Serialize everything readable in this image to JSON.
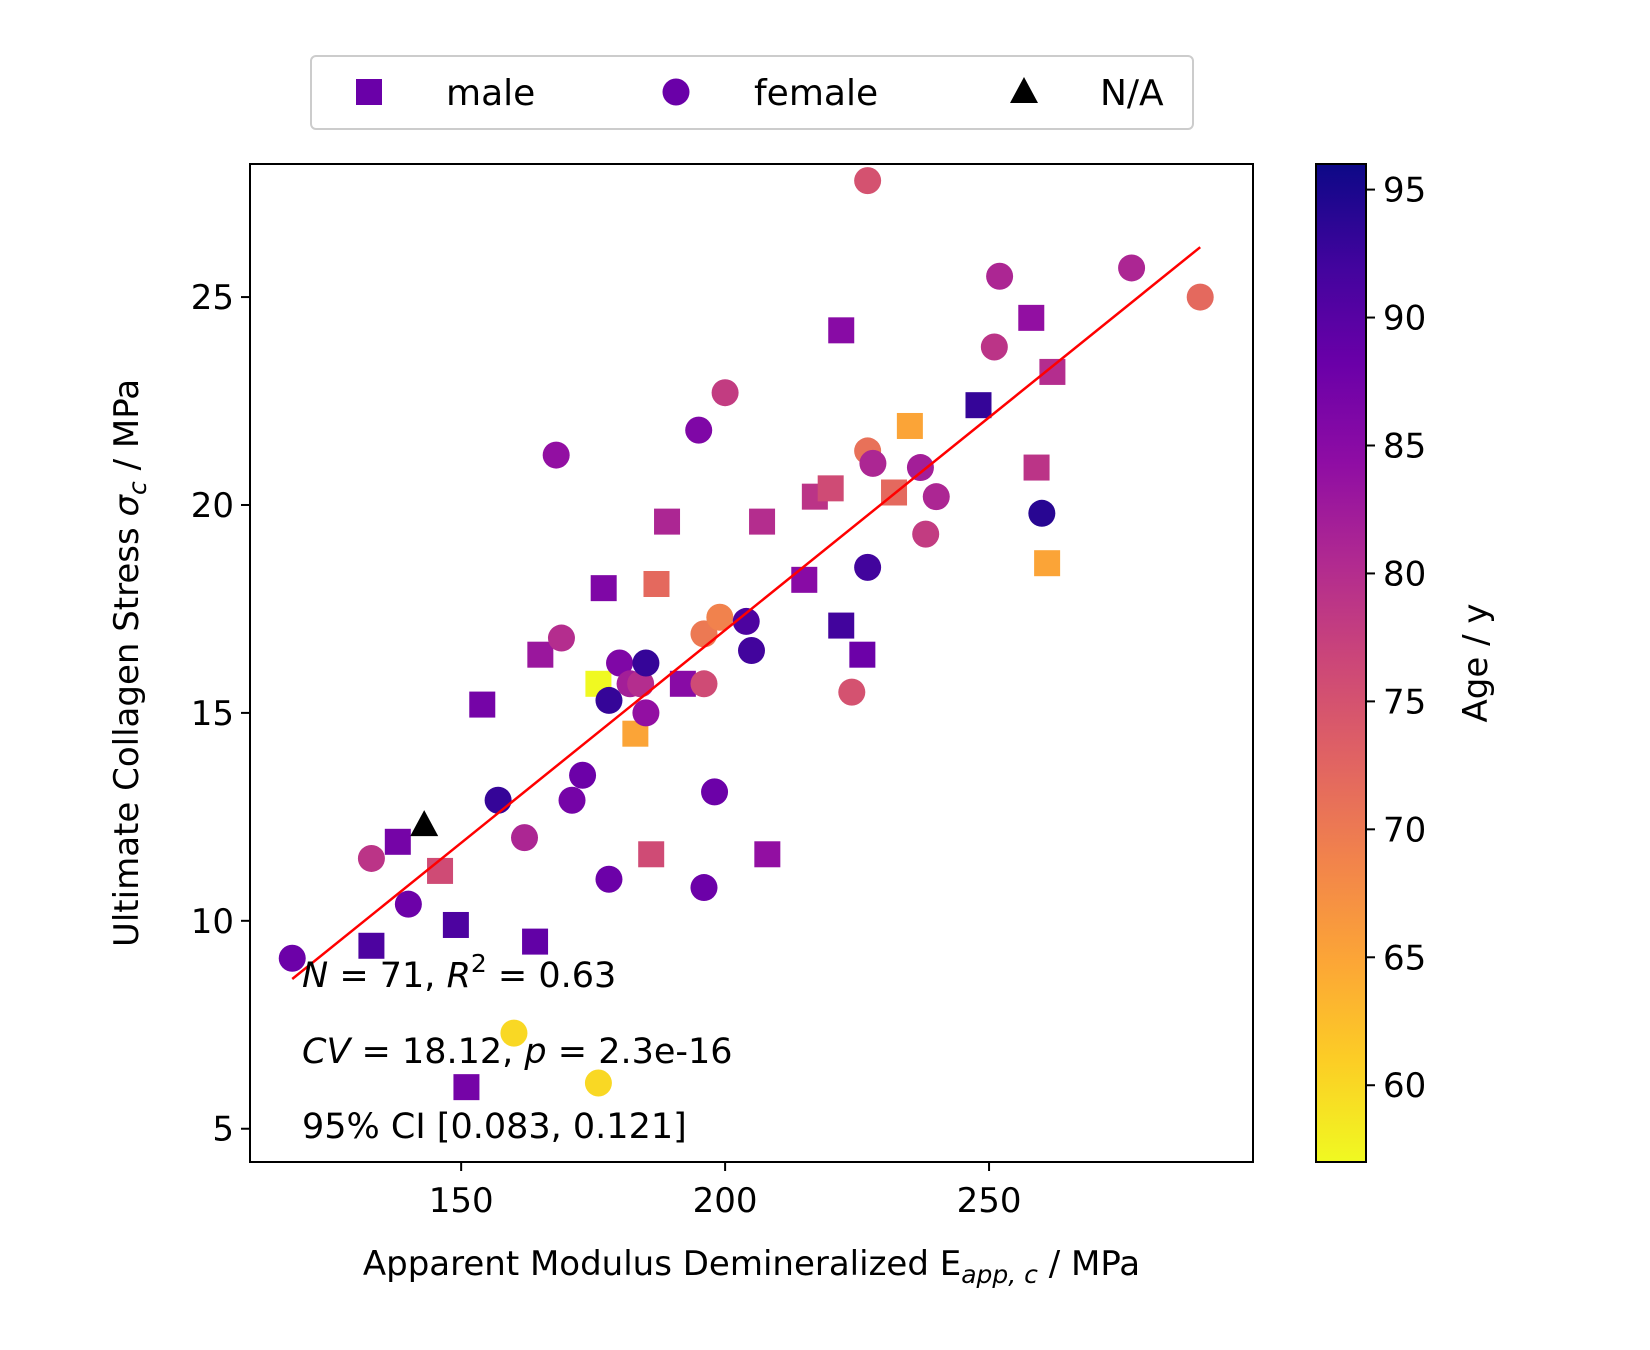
{
  "chart_data": {
    "type": "scatter",
    "title": "",
    "xlabel": {
      "main": "Apparent Modulus Demineralized E",
      "sub": "app, c",
      "unit": " / MPa"
    },
    "ylabel": {
      "main": "Ultimate Collagen Stress ",
      "sym": "σ",
      "sub": "c",
      "unit": " / MPa"
    },
    "xlim": [
      110,
      300
    ],
    "ylim": [
      4.2,
      28.2
    ],
    "xticks": [
      150,
      200,
      250
    ],
    "yticks": [
      5,
      10,
      15,
      20,
      25
    ],
    "grid": false,
    "legend": {
      "placement": "top-center",
      "entries": [
        {
          "marker": "square",
          "label": "male",
          "color": "#6a00a8"
        },
        {
          "marker": "circle",
          "label": "female",
          "color": "#6a00a8"
        },
        {
          "marker": "triangle",
          "label": "N/A",
          "color": "#000000"
        }
      ]
    },
    "colorbar": {
      "label": "Age / y",
      "colormap": "plasma",
      "range": [
        57,
        96
      ],
      "ticks": [
        60,
        65,
        70,
        75,
        80,
        85,
        90,
        95
      ]
    },
    "regression": {
      "color": "#ff0000",
      "x": [
        118,
        290
      ],
      "y": [
        8.6,
        26.2
      ]
    },
    "annotations": [
      {
        "parts": [
          {
            "t": "N",
            "i": true
          },
          {
            "t": " = 71, "
          },
          {
            "t": "R",
            "i": true
          },
          {
            "t": "2",
            "sup": true
          },
          {
            "t": " = 0.63"
          }
        ]
      },
      {
        "parts": [
          {
            "t": "CV",
            "i": true
          },
          {
            "t": " = 18.12, "
          },
          {
            "t": "p",
            "i": true
          },
          {
            "t": " = 2.3e-16"
          }
        ]
      },
      {
        "parts": [
          {
            "t": "95% CI [0.083,  0.121]"
          }
        ]
      }
    ],
    "series": [
      {
        "name": "male",
        "marker": "square",
        "points": [
          {
            "x": 133,
            "y": 9.4,
            "age": 91
          },
          {
            "x": 138,
            "y": 11.9,
            "age": 87
          },
          {
            "x": 146,
            "y": 11.2,
            "age": 76
          },
          {
            "x": 149,
            "y": 9.9,
            "age": 91
          },
          {
            "x": 151,
            "y": 6.0,
            "age": 87
          },
          {
            "x": 154,
            "y": 15.2,
            "age": 87
          },
          {
            "x": 164,
            "y": 9.5,
            "age": 89
          },
          {
            "x": 165,
            "y": 16.4,
            "age": 83
          },
          {
            "x": 177,
            "y": 18.0,
            "age": 86
          },
          {
            "x": 176,
            "y": 15.7,
            "age": 57
          },
          {
            "x": 183,
            "y": 14.5,
            "age": 65
          },
          {
            "x": 186,
            "y": 11.6,
            "age": 76
          },
          {
            "x": 187,
            "y": 18.1,
            "age": 72
          },
          {
            "x": 189,
            "y": 19.6,
            "age": 81
          },
          {
            "x": 192,
            "y": 15.7,
            "age": 85
          },
          {
            "x": 207,
            "y": 19.6,
            "age": 80
          },
          {
            "x": 208,
            "y": 11.6,
            "age": 84
          },
          {
            "x": 215,
            "y": 18.2,
            "age": 85
          },
          {
            "x": 217,
            "y": 20.2,
            "age": 79
          },
          {
            "x": 220,
            "y": 20.4,
            "age": 76
          },
          {
            "x": 222,
            "y": 24.2,
            "age": 85
          },
          {
            "x": 222,
            "y": 17.1,
            "age": 92
          },
          {
            "x": 226,
            "y": 16.4,
            "age": 88
          },
          {
            "x": 232,
            "y": 20.3,
            "age": 72
          },
          {
            "x": 235,
            "y": 21.9,
            "age": 65
          },
          {
            "x": 248,
            "y": 22.4,
            "age": 93
          },
          {
            "x": 258,
            "y": 24.5,
            "age": 84
          },
          {
            "x": 259,
            "y": 20.9,
            "age": 79
          },
          {
            "x": 261,
            "y": 18.6,
            "age": 65
          },
          {
            "x": 262,
            "y": 23.2,
            "age": 80
          }
        ]
      },
      {
        "name": "female",
        "marker": "circle",
        "points": [
          {
            "x": 118,
            "y": 9.1,
            "age": 88
          },
          {
            "x": 133,
            "y": 11.5,
            "age": 79
          },
          {
            "x": 140,
            "y": 10.4,
            "age": 88
          },
          {
            "x": 157,
            "y": 12.9,
            "age": 93
          },
          {
            "x": 160,
            "y": 7.3,
            "age": 60
          },
          {
            "x": 162,
            "y": 12.0,
            "age": 81
          },
          {
            "x": 168,
            "y": 21.2,
            "age": 84
          },
          {
            "x": 169,
            "y": 16.8,
            "age": 80
          },
          {
            "x": 171,
            "y": 12.9,
            "age": 87
          },
          {
            "x": 173,
            "y": 13.5,
            "age": 88
          },
          {
            "x": 176,
            "y": 6.1,
            "age": 60
          },
          {
            "x": 178,
            "y": 11.0,
            "age": 88
          },
          {
            "x": 178,
            "y": 15.3,
            "age": 93
          },
          {
            "x": 180,
            "y": 16.2,
            "age": 86
          },
          {
            "x": 182,
            "y": 15.7,
            "age": 82
          },
          {
            "x": 184,
            "y": 15.7,
            "age": 80
          },
          {
            "x": 185,
            "y": 16.2,
            "age": 93
          },
          {
            "x": 185,
            "y": 15.0,
            "age": 84
          },
          {
            "x": 195,
            "y": 21.8,
            "age": 86
          },
          {
            "x": 196,
            "y": 15.7,
            "age": 76
          },
          {
            "x": 196,
            "y": 10.8,
            "age": 88
          },
          {
            "x": 196,
            "y": 16.9,
            "age": 70
          },
          {
            "x": 198,
            "y": 13.1,
            "age": 88
          },
          {
            "x": 199,
            "y": 17.3,
            "age": 69
          },
          {
            "x": 200,
            "y": 22.7,
            "age": 78
          },
          {
            "x": 204,
            "y": 17.2,
            "age": 91
          },
          {
            "x": 205,
            "y": 16.5,
            "age": 92
          },
          {
            "x": 224,
            "y": 15.5,
            "age": 75
          },
          {
            "x": 227,
            "y": 27.8,
            "age": 75
          },
          {
            "x": 227,
            "y": 21.3,
            "age": 71
          },
          {
            "x": 227,
            "y": 18.5,
            "age": 92
          },
          {
            "x": 228,
            "y": 21.0,
            "age": 81
          },
          {
            "x": 237,
            "y": 20.9,
            "age": 82
          },
          {
            "x": 238,
            "y": 19.3,
            "age": 78
          },
          {
            "x": 240,
            "y": 20.2,
            "age": 81
          },
          {
            "x": 251,
            "y": 23.8,
            "age": 79
          },
          {
            "x": 252,
            "y": 25.5,
            "age": 81
          },
          {
            "x": 260,
            "y": 19.8,
            "age": 94
          },
          {
            "x": 277,
            "y": 25.7,
            "age": 81
          },
          {
            "x": 290,
            "y": 25.0,
            "age": 72
          }
        ]
      },
      {
        "name": "N/A",
        "marker": "triangle",
        "points": [
          {
            "x": 143,
            "y": 12.3,
            "age": null
          }
        ]
      }
    ]
  }
}
